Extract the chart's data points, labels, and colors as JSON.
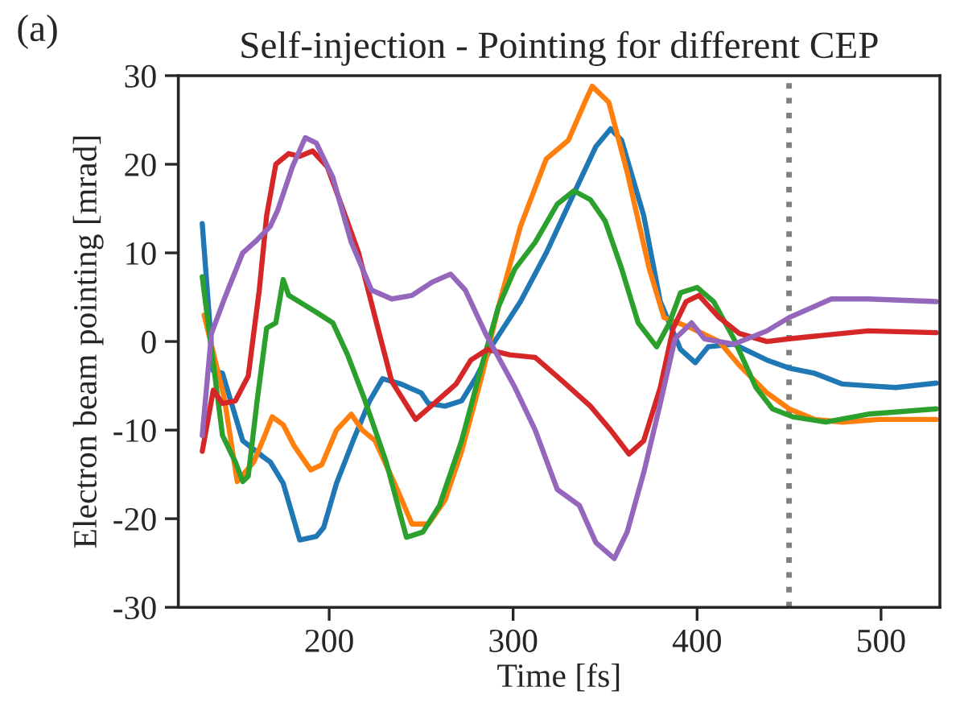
{
  "chart_data": {
    "type": "line",
    "title": "Self-injection - Pointing for different CEP",
    "xlabel": "Time [fs]",
    "ylabel": "Electron beam pointing [mrad]",
    "annotations": [
      "(a)"
    ],
    "xlim": [
      118,
      532
    ],
    "xticks": [
      200,
      300,
      400,
      500
    ],
    "ylim": [
      -30,
      30
    ],
    "yticks": [
      -30,
      -20,
      -10,
      0,
      10,
      20,
      30
    ],
    "grid": false,
    "legend": false,
    "line_style": "solid",
    "marker": "none",
    "ref_lines": [
      {
        "axis": "x",
        "value": 450,
        "color": "#808080",
        "line_style": "dotted"
      }
    ],
    "series": [
      {
        "color": "#1f77b4",
        "x": [
          131,
          137,
          142,
          153,
          164,
          168,
          175,
          184,
          193,
          197,
          204,
          213,
          222,
          229,
          239,
          250,
          254,
          263,
          272,
          280,
          289,
          304,
          318,
          333,
          345,
          353,
          359,
          371,
          380,
          391,
          399,
          406,
          420,
          438,
          450,
          464,
          479,
          493,
          508,
          530
        ],
        "values": [
          13.3,
          -3.3,
          -3.6,
          -11.2,
          -13,
          -13.6,
          -16,
          -22.4,
          -22,
          -21,
          -16,
          -11.2,
          -6.7,
          -4.2,
          -4.8,
          -5.8,
          -7,
          -7.3,
          -6.7,
          -4,
          -0.3,
          4.5,
          10,
          16.7,
          22,
          24,
          22.7,
          14.2,
          4.5,
          -0.9,
          -2.4,
          -0.6,
          -0.3,
          -2.1,
          -3,
          -3.6,
          -4.8,
          -5,
          -5.2,
          -4.7
        ]
      },
      {
        "color": "#ff7f0e",
        "x": [
          132,
          143,
          150,
          159,
          165,
          169,
          175,
          181,
          190,
          196,
          204,
          212,
          218,
          225,
          237,
          245,
          254,
          263,
          272,
          283,
          292,
          304,
          318,
          330,
          339,
          343,
          352,
          362,
          374,
          382,
          397,
          412,
          423,
          438,
          450,
          464,
          479,
          499,
          530
        ],
        "values": [
          3,
          -6.4,
          -15.8,
          -13.6,
          -10.6,
          -8.5,
          -9.4,
          -11.8,
          -14.5,
          -13.9,
          -10,
          -8.2,
          -10,
          -11.2,
          -16.7,
          -20.6,
          -20.6,
          -17.9,
          -12.4,
          -3.9,
          3.9,
          13,
          20.6,
          22.7,
          27,
          28.8,
          27,
          19.1,
          8.2,
          2.7,
          1.5,
          0,
          -2.7,
          -5.8,
          -7.6,
          -8.8,
          -9.1,
          -8.8,
          -8.8
        ]
      },
      {
        "color": "#2ca02c",
        "x": [
          131,
          142,
          149,
          153,
          156,
          161,
          166,
          171,
          175,
          178,
          193,
          202,
          210,
          219,
          231,
          242,
          251,
          260,
          272,
          283,
          292,
          301,
          312,
          324,
          333,
          342,
          350,
          359,
          368,
          378,
          385,
          391,
          400,
          409,
          420,
          432,
          441,
          452,
          470,
          493,
          530
        ],
        "values": [
          7.3,
          -10.6,
          -13.6,
          -15.8,
          -15.2,
          -6.4,
          1.5,
          2.1,
          7,
          5.2,
          3.3,
          2.1,
          -1.5,
          -6.4,
          -13.6,
          -22.1,
          -21.5,
          -18.5,
          -11.2,
          -2.7,
          3.9,
          8.2,
          11.2,
          15.5,
          17,
          16,
          13.6,
          8.2,
          2.1,
          -0.6,
          2.1,
          5.5,
          6.1,
          4.5,
          0.3,
          -5.2,
          -7.6,
          -8.5,
          -9.1,
          -8.2,
          -7.6
        ]
      },
      {
        "color": "#d62728",
        "x": [
          131,
          137,
          142,
          149,
          156,
          162,
          166,
          171,
          178,
          184,
          191,
          199,
          207,
          216,
          225,
          234,
          247,
          257,
          269,
          277,
          286,
          298,
          312,
          327,
          342,
          353,
          363,
          371,
          380,
          387,
          394,
          401,
          412,
          423,
          438,
          450,
          464,
          493,
          530
        ],
        "values": [
          -12.4,
          -5.5,
          -7,
          -6.7,
          -3.9,
          5.8,
          14.2,
          20,
          21.2,
          20.9,
          21.5,
          19.7,
          15.2,
          10,
          2.7,
          -4.5,
          -8.8,
          -7,
          -4.8,
          -2.1,
          -0.9,
          -1.5,
          -1.8,
          -4.5,
          -7.3,
          -10,
          -12.7,
          -11.2,
          -5.2,
          1.5,
          4.5,
          5.2,
          2.7,
          0.9,
          0,
          0.3,
          0.6,
          1.2,
          1
        ]
      },
      {
        "color": "#9467bd",
        "x": [
          131,
          136,
          143,
          153,
          161,
          168,
          172,
          180,
          187,
          193,
          202,
          212,
          223,
          234,
          245,
          256,
          266,
          274,
          285,
          301,
          312,
          324,
          336,
          345,
          355,
          362,
          371,
          380,
          388,
          397,
          404,
          420,
          438,
          450,
          473,
          493,
          530
        ],
        "values": [
          -10.6,
          0.9,
          4.8,
          10,
          11.5,
          13,
          14.8,
          19.7,
          23,
          22.4,
          18.5,
          11.2,
          5.8,
          4.8,
          5.2,
          6.7,
          7.6,
          5.8,
          0.9,
          -5.2,
          -10,
          -16.7,
          -18.5,
          -22.7,
          -24.5,
          -21.5,
          -14.8,
          -7,
          0.3,
          2.1,
          0.3,
          -0.3,
          1.2,
          2.7,
          4.8,
          4.8,
          4.5
        ]
      }
    ]
  }
}
